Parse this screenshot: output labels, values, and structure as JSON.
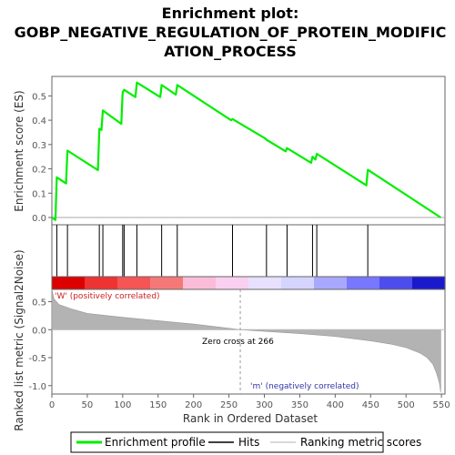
{
  "chart_data": {
    "type": "line",
    "title_lines": [
      "Enrichment plot:",
      "GOBP_NEGATIVE_REGULATION_OF_PROTEIN_MODIFIC",
      "ATION_PROCESS"
    ],
    "ylabel_top": "Enrichment score (ES)",
    "ylabel_bottom": "Ranked list metric (Signal2Noise)",
    "xlabel": "Rank in Ordered Dataset",
    "xlim": [
      0,
      555
    ],
    "ylim_top": [
      -0.03,
      0.58
    ],
    "ylim_bottom": [
      -1.15,
      0.72
    ],
    "x_ticks": [
      0,
      50,
      100,
      150,
      200,
      250,
      300,
      350,
      400,
      450,
      500,
      550
    ],
    "y_ticks_top": [
      "0.0",
      "0.1",
      "0.2",
      "0.3",
      "0.4",
      "0.5"
    ],
    "y_ticks_bottom": [
      "-1.0",
      "-0.5",
      "0.0",
      "0.5"
    ],
    "hits": [
      7,
      22,
      67,
      72,
      100,
      102,
      120,
      155,
      177,
      255,
      303,
      332,
      368,
      374,
      446
    ],
    "es_x": [
      0,
      5,
      7,
      20,
      22,
      65,
      67,
      70,
      72,
      98,
      100,
      102,
      118,
      120,
      153,
      155,
      175,
      177,
      253,
      255,
      301,
      303,
      330,
      332,
      366,
      368,
      372,
      374,
      444,
      446,
      549
    ],
    "es_y": [
      0.0,
      -0.01,
      0.165,
      0.14,
      0.275,
      0.195,
      0.365,
      0.36,
      0.44,
      0.385,
      0.515,
      0.525,
      0.495,
      0.555,
      0.495,
      0.545,
      0.505,
      0.545,
      0.4,
      0.405,
      0.325,
      0.32,
      0.272,
      0.285,
      0.225,
      0.25,
      0.238,
      0.262,
      0.132,
      0.196,
      0.0
    ],
    "metric_x": [
      0,
      3,
      10,
      30,
      50,
      100,
      150,
      200,
      240,
      266,
      300,
      350,
      400,
      450,
      480,
      500,
      520,
      530,
      538,
      543,
      547,
      549
    ],
    "metric_y": [
      0.72,
      0.55,
      0.45,
      0.36,
      0.29,
      0.22,
      0.16,
      0.1,
      0.04,
      0.0,
      -0.03,
      -0.07,
      -0.12,
      -0.2,
      -0.26,
      -0.32,
      -0.42,
      -0.5,
      -0.62,
      -0.78,
      -0.95,
      -1.12
    ],
    "zero_cross": 266,
    "zero_cross_label": "Zero cross at 266",
    "pos_label": "'W' (positively correlated)",
    "neg_label": "'m' (negatively correlated)",
    "legend": [
      "Enrichment profile",
      "Hits",
      "Ranking metric scores"
    ],
    "colors": {
      "es_line": "#00ee00",
      "hit": "#000000",
      "metric": "#b3b3b3",
      "pos_label": "#cc2222",
      "neg_label": "#3333aa",
      "colorbar": [
        "#dd0000",
        "#ee3333",
        "#f55555",
        "#f57878",
        "#fbbcd8",
        "#fad0f0",
        "#e8e0ff",
        "#d4d4ff",
        "#a8a8ff",
        "#7777ff",
        "#4d4dee",
        "#1a1acc"
      ]
    }
  }
}
